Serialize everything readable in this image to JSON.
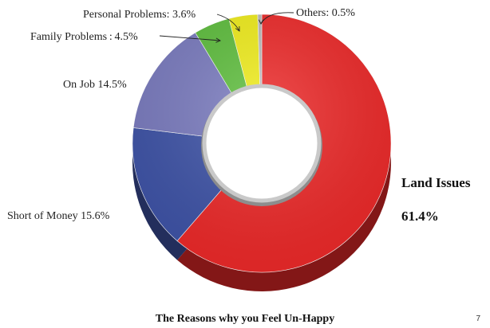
{
  "chart_data": {
    "type": "pie",
    "style": "3d-donut",
    "title": "The Reasons why you Feel Un-Happy",
    "slices": [
      {
        "label": "Land Issues",
        "value_label": "61.4%",
        "value": 61.4,
        "color": "#ee2a2a"
      },
      {
        "label": "Short of  Money",
        "value_label": "15.6%",
        "value": 15.6,
        "color": "#3f54a8"
      },
      {
        "label": "On Job",
        "value_label": "14.5%",
        "value": 14.5,
        "color": "#7b7cc0"
      },
      {
        "label": "Family Problems",
        "value_label": "4.5%",
        "value": 4.5,
        "color": "#5fbf3e"
      },
      {
        "label": "Personal Problems",
        "value_label": "3.6%",
        "value": 3.6,
        "color": "#f1ee1c"
      },
      {
        "label": "Others",
        "value_label": "0.5%",
        "value": 0.5,
        "color": "#bbbbbb"
      }
    ]
  },
  "labels": {
    "land_name": "Land Issues",
    "land_value": "61.4%",
    "money": "Short of  Money 15.6%",
    "job": "On Job 14.5%",
    "family": "Family Problems : 4.5%",
    "personal": "Personal Problems: 3.6%",
    "others": "Others:  0.5%"
  },
  "page_number": "7"
}
